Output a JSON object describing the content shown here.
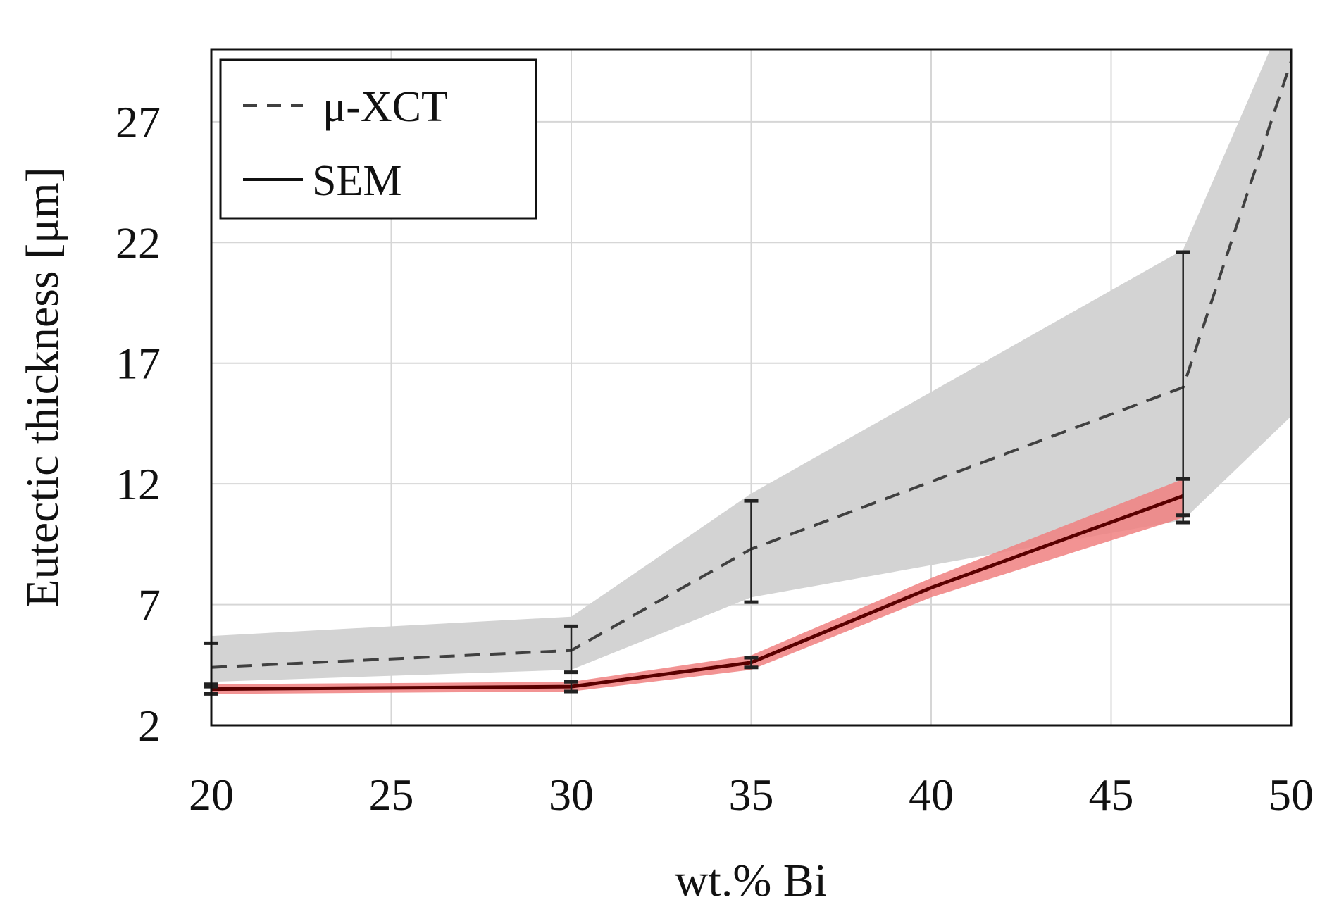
{
  "chart_data": {
    "type": "line",
    "xlabel": "wt.% Bi",
    "ylabel": "Eutectic thickness [μm]",
    "xlim": [
      20,
      50
    ],
    "ylim": [
      2,
      30
    ],
    "x_ticks": [
      20,
      25,
      30,
      35,
      40,
      45,
      50
    ],
    "y_ticks": [
      2,
      7,
      12,
      17,
      22,
      27
    ],
    "grid": true,
    "legend_position": "top-left",
    "series": [
      {
        "name": "μ-XCT",
        "line_style": "dashed",
        "color": "#404040",
        "band_color": "#d3d3d3",
        "x": [
          20,
          30,
          35,
          47,
          50
        ],
        "y": [
          4.4,
          5.1,
          9.3,
          16.0,
          29.5
        ],
        "band_lower": [
          3.8,
          4.3,
          7.3,
          10.5,
          14.8
        ],
        "band_upper": [
          5.7,
          6.5,
          11.6,
          21.7,
          32.0
        ],
        "error_bars": [
          {
            "x": 20,
            "lower": 3.6,
            "upper": 5.4
          },
          {
            "x": 30,
            "lower": 4.2,
            "upper": 6.1
          },
          {
            "x": 35,
            "lower": 7.1,
            "upper": 11.3
          },
          {
            "x": 47,
            "lower": 10.7,
            "upper": 21.6
          }
        ]
      },
      {
        "name": "SEM",
        "line_style": "solid",
        "color": "#5a0000",
        "band_color": "#f08080",
        "x": [
          20,
          30,
          35,
          40,
          47
        ],
        "y": [
          3.5,
          3.6,
          4.6,
          7.7,
          11.5
        ],
        "band_lower": [
          3.3,
          3.4,
          4.3,
          7.3,
          10.6
        ],
        "band_upper": [
          3.7,
          3.8,
          4.9,
          8.1,
          12.2
        ],
        "error_bars": [
          {
            "x": 20,
            "lower": 3.3,
            "upper": 3.7
          },
          {
            "x": 30,
            "lower": 3.4,
            "upper": 3.8
          },
          {
            "x": 35,
            "lower": 4.4,
            "upper": 4.8
          },
          {
            "x": 47,
            "lower": 10.4,
            "upper": 12.2
          }
        ]
      }
    ]
  }
}
